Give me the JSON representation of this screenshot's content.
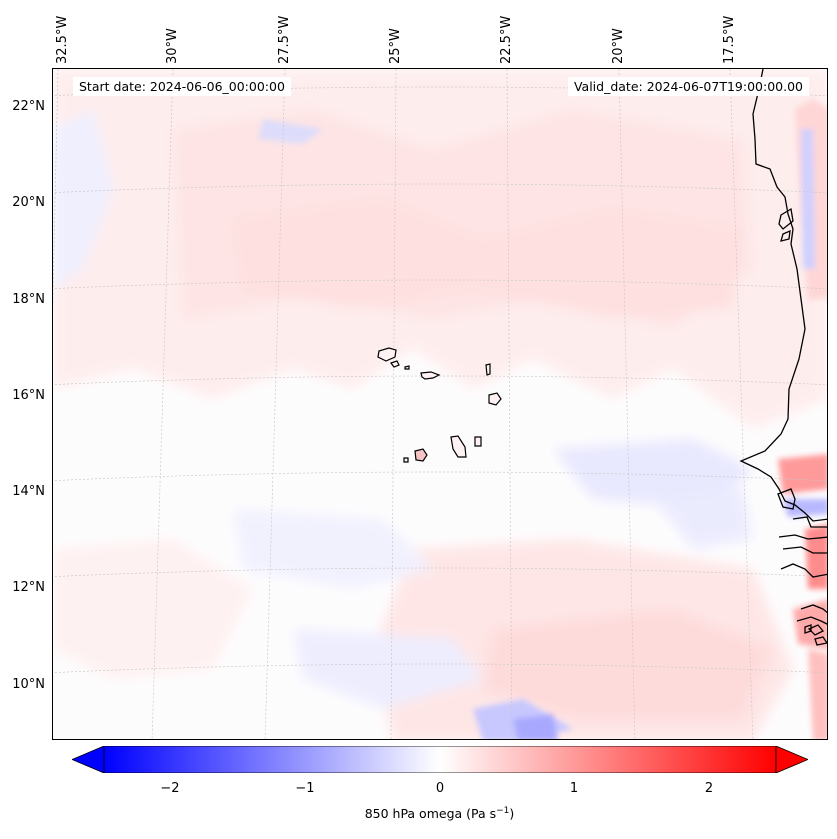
{
  "map": {
    "projection": "lambert-conformal",
    "start_date": "Start date: 2024-06-06_00:00:00",
    "valid_date": "Valid_date: 2024-06-07T19:00:00.00",
    "lon_ticks": [
      "32.5°W",
      "30°W",
      "27.5°W",
      "25°W",
      "22.5°W",
      "20°W",
      "17.5°W"
    ],
    "lat_ticks": [
      "22°N",
      "20°N",
      "18°N",
      "16°N",
      "14°N",
      "12°N",
      "10°N"
    ],
    "features": [
      "Cape Verde islands",
      "West African coastline (Mauritania, Senegal, Gambia, Guinea-Bissau)"
    ]
  },
  "colorbar": {
    "colormap": "bwr",
    "low_color": "#0000ff",
    "mid_color": "#ffffff",
    "high_color": "#ff0000",
    "range": [
      -2.5,
      2.5
    ],
    "extend": "both",
    "ticks": [
      "−2",
      "−1",
      "0",
      "1",
      "2"
    ],
    "label_main": "850 hPa omega (Pa s",
    "label_exp": "−1",
    "label_end": ")"
  }
}
